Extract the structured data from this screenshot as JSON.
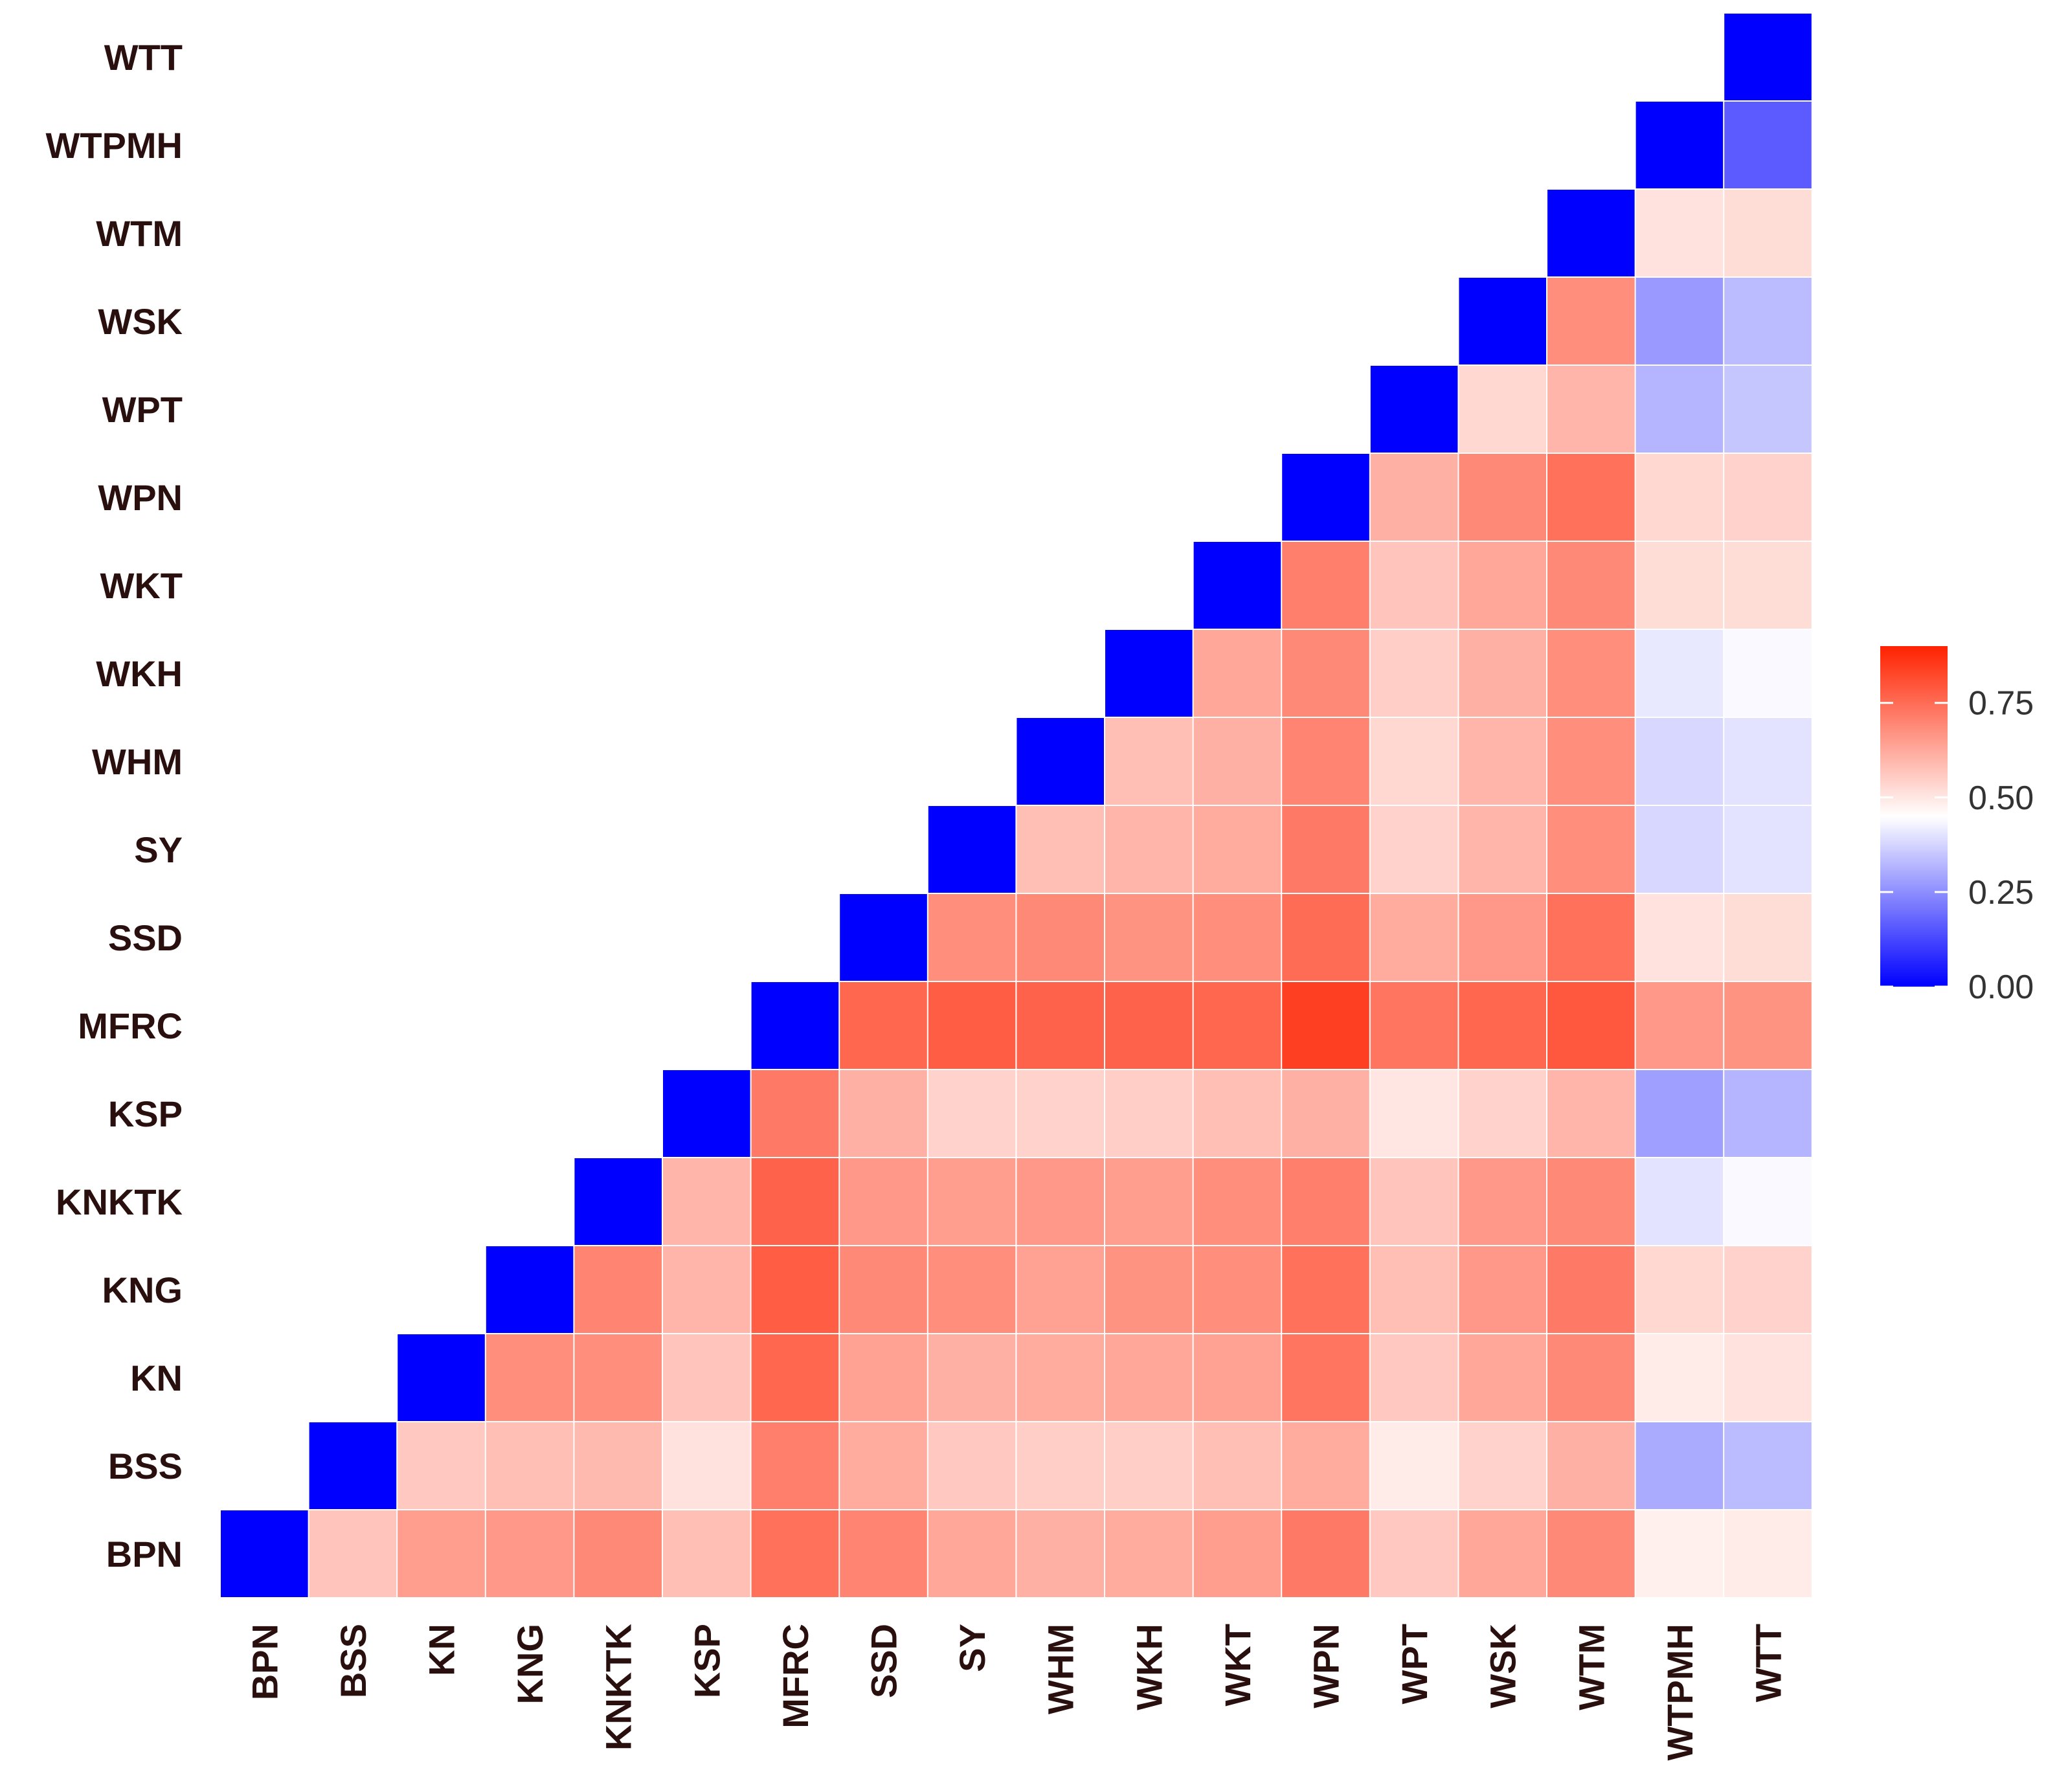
{
  "chart_data": {
    "type": "heatmap",
    "variables": [
      "BPN",
      "BSS",
      "KN",
      "KNG",
      "KNKTK",
      "KSP",
      "MFRC",
      "SSD",
      "SY",
      "WHM",
      "WKH",
      "WKT",
      "WPN",
      "WPT",
      "WSK",
      "WTM",
      "WTPMH",
      "WTT"
    ],
    "diagonal_value": 0,
    "values": [
      [
        0.0
      ],
      [
        0.57,
        0.0
      ],
      [
        0.65,
        0.56,
        0.0
      ],
      [
        0.66,
        0.58,
        0.68,
        0.0
      ],
      [
        0.69,
        0.59,
        0.68,
        0.7,
        0.0
      ],
      [
        0.58,
        0.51,
        0.57,
        0.6,
        0.6,
        0.0
      ],
      [
        0.74,
        0.71,
        0.76,
        0.78,
        0.77,
        0.72,
        0.0
      ],
      [
        0.7,
        0.62,
        0.64,
        0.69,
        0.66,
        0.61,
        0.76,
        0.0
      ],
      [
        0.63,
        0.56,
        0.61,
        0.68,
        0.65,
        0.54,
        0.78,
        0.68,
        0.0
      ],
      [
        0.61,
        0.55,
        0.62,
        0.64,
        0.66,
        0.54,
        0.77,
        0.69,
        0.58,
        0.0
      ],
      [
        0.62,
        0.55,
        0.63,
        0.67,
        0.65,
        0.55,
        0.77,
        0.67,
        0.6,
        0.58,
        0.0
      ],
      [
        0.65,
        0.58,
        0.64,
        0.68,
        0.68,
        0.58,
        0.76,
        0.68,
        0.62,
        0.61,
        0.63,
        0.0
      ],
      [
        0.72,
        0.62,
        0.73,
        0.74,
        0.71,
        0.61,
        0.84,
        0.75,
        0.72,
        0.7,
        0.69,
        0.71,
        0.0
      ],
      [
        0.56,
        0.49,
        0.56,
        0.58,
        0.57,
        0.5,
        0.73,
        0.62,
        0.54,
        0.53,
        0.55,
        0.57,
        0.61,
        0.0
      ],
      [
        0.63,
        0.54,
        0.63,
        0.66,
        0.66,
        0.54,
        0.76,
        0.66,
        0.6,
        0.6,
        0.61,
        0.63,
        0.69,
        0.53,
        0.0
      ],
      [
        0.69,
        0.61,
        0.69,
        0.72,
        0.69,
        0.6,
        0.79,
        0.74,
        0.68,
        0.68,
        0.68,
        0.69,
        0.74,
        0.6,
        0.68,
        0.0
      ],
      [
        0.48,
        0.3,
        0.49,
        0.53,
        0.4,
        0.28,
        0.66,
        0.51,
        0.38,
        0.38,
        0.41,
        0.52,
        0.53,
        0.32,
        0.27,
        0.51,
        0.0
      ],
      [
        0.49,
        0.33,
        0.51,
        0.54,
        0.44,
        0.32,
        0.67,
        0.52,
        0.4,
        0.4,
        0.44,
        0.52,
        0.54,
        0.35,
        0.33,
        0.52,
        0.16,
        0.0
      ]
    ],
    "legend": {
      "ticks": [
        0.0,
        0.25,
        0.5,
        0.75
      ],
      "tick_labels": [
        "0.00",
        "0.25",
        "0.50",
        "0.75"
      ],
      "range": [
        0,
        0.9
      ],
      "colors": {
        "low": "#0000ff",
        "mid": "#ffffff",
        "high": "#ff2200",
        "midpoint": 0.45
      }
    },
    "title": "",
    "xlabel": "",
    "ylabel": ""
  }
}
